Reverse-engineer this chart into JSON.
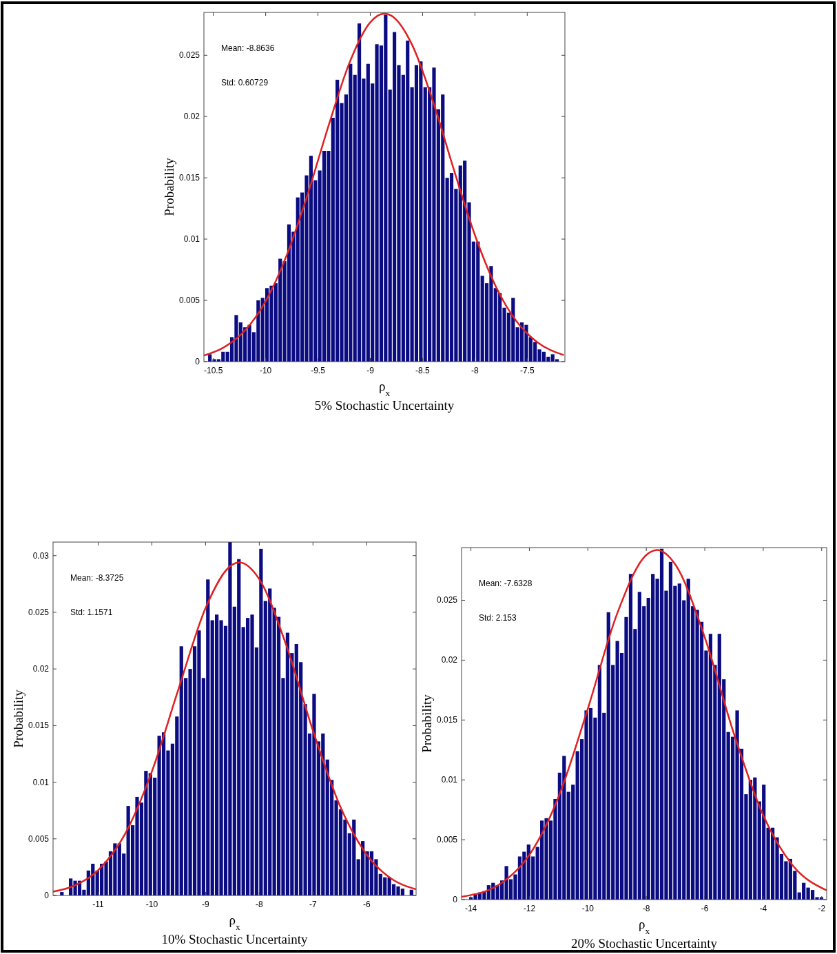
{
  "chart_data": [
    {
      "type": "histogram",
      "title": "5% Stochastic Uncertainty",
      "xlabel": "ρ$_{x}$",
      "ylabel": "Probability",
      "annotations": [
        "Mean: -8.8636",
        "Std: 0.60729"
      ],
      "xlim": [
        -10.59,
        -7.14
      ],
      "ylim": [
        0,
        0.0285
      ],
      "xticks": [
        -10.5,
        -10,
        -9.5,
        -9,
        -8.5,
        -8,
        -7.5
      ],
      "yticks": [
        0,
        0.005,
        0.01,
        0.015,
        0.02,
        0.025
      ],
      "series": [
        {
          "color": "#0b0b82",
          "bins": [
            -10.554,
            -10.512,
            -10.47,
            -10.428,
            -10.386,
            -10.344,
            -10.302,
            -10.26,
            -10.218,
            -10.176,
            -10.134,
            -10.092,
            -10.05,
            -10.008,
            -9.966,
            -9.924,
            -9.882,
            -9.84,
            -9.798,
            -9.756,
            -9.714,
            -9.672,
            -9.63,
            -9.588,
            -9.546,
            -9.504,
            -9.462,
            -9.42,
            -9.378,
            -9.336,
            -9.294,
            -9.252,
            -9.21,
            -9.168,
            -9.126,
            -9.084,
            -9.042,
            -9.0,
            -8.958,
            -8.916,
            -8.874,
            -8.832,
            -8.79,
            -8.748,
            -8.706,
            -8.664,
            -8.622,
            -8.58,
            -8.538,
            -8.496,
            -8.454,
            -8.412,
            -8.37,
            -8.328,
            -8.286,
            -8.244,
            -8.202,
            -8.16,
            -8.118,
            -8.076,
            -8.034,
            -7.992,
            -7.95,
            -7.908,
            -7.866,
            -7.824,
            -7.782,
            -7.74,
            -7.698,
            -7.656,
            -7.614,
            -7.572,
            -7.53,
            -7.488,
            -7.446,
            -7.404,
            -7.362,
            -7.32,
            -7.278,
            -7.236,
            -7.194
          ],
          "values": [
            0.0006,
            0.0002,
            0.0002,
            0.0008,
            0.0008,
            0.002,
            0.0038,
            0.0032,
            0.0028,
            0.003,
            0.0024,
            0.005,
            0.0052,
            0.006,
            0.0062,
            0.0064,
            0.0084,
            0.0082,
            0.0112,
            0.0106,
            0.0134,
            0.0138,
            0.0152,
            0.0168,
            0.0148,
            0.0156,
            0.0172,
            0.0172,
            0.0199,
            0.023,
            0.0211,
            0.0218,
            0.0243,
            0.0234,
            0.0276,
            0.0231,
            0.0243,
            0.0227,
            0.0259,
            0.0258,
            0.0283,
            0.0222,
            0.0269,
            0.0242,
            0.0234,
            0.0262,
            0.0224,
            0.0242,
            0.0245,
            0.0224,
            0.0224,
            0.024,
            0.0206,
            0.0218,
            0.015,
            0.0154,
            0.0141,
            0.016,
            0.0164,
            0.013,
            0.0098,
            0.0098,
            0.007,
            0.0064,
            0.0078,
            0.006,
            0.0056,
            0.0044,
            0.004,
            0.0052,
            0.0028,
            0.0032,
            0.003,
            0.002,
            0.0016,
            0.001,
            0.0008,
            0.0004,
            0.0006,
            0.0002
          ]
        },
        {
          "type": "line",
          "color": "#e02020",
          "x": [
            -10.59,
            -10.4,
            -10.2,
            -10.0,
            -9.8,
            -9.6,
            -9.4,
            -9.2,
            -9.0,
            -8.8636,
            -8.8,
            -8.6,
            -8.4,
            -8.2,
            -8.0,
            -7.8,
            -7.6,
            -7.4,
            -7.15
          ],
          "values": [
            0.0005,
            0.00116,
            0.00252,
            0.00493,
            0.00865,
            0.01361,
            0.01922,
            0.02436,
            0.02769,
            0.0284,
            0.02824,
            0.02585,
            0.02122,
            0.01563,
            0.01033,
            0.00613,
            0.00326,
            0.00156,
            0.00053
          ]
        }
      ]
    },
    {
      "type": "histogram",
      "title": "10% Stochastic Uncertainty",
      "xlabel": "ρ$_{x}$",
      "ylabel": "Probability",
      "annotations": [
        "Mean: -8.3725",
        "Std: 1.1571"
      ],
      "xlim": [
        -11.84,
        -5.08
      ],
      "ylim": [
        0,
        0.0312
      ],
      "xticks": [
        -11,
        -10,
        -9,
        -8,
        -7,
        -6
      ],
      "yticks": [
        0,
        0.005,
        0.01,
        0.015,
        0.02,
        0.025,
        0.03
      ],
      "series": [
        {
          "color": "#0b0b82",
          "bins": [
            -11.717,
            -11.6346,
            -11.5522,
            -11.4698,
            -11.3874,
            -11.305,
            -11.2226,
            -11.1402,
            -11.0578,
            -10.9754,
            -10.893,
            -10.8106,
            -10.7282,
            -10.6458,
            -10.5634,
            -10.481,
            -10.3986,
            -10.3162,
            -10.2338,
            -10.1514,
            -10.069,
            -9.9866,
            -9.9042,
            -9.8218,
            -9.7394,
            -9.657,
            -9.5746,
            -9.4922,
            -9.4098,
            -9.3274,
            -9.245,
            -9.1626,
            -9.0802,
            -8.9978,
            -8.9154,
            -8.833,
            -8.7506,
            -8.6682,
            -8.5858,
            -8.5034,
            -8.421,
            -8.3386,
            -8.2562,
            -8.1738,
            -8.0914,
            -8.009,
            -7.9266,
            -7.8442,
            -7.7618,
            -7.6794,
            -7.597,
            -7.5146,
            -7.4322,
            -7.3498,
            -7.2674,
            -7.185,
            -7.1026,
            -7.0202,
            -6.9378,
            -6.8554,
            -6.773,
            -6.6906,
            -6.6082,
            -6.5258,
            -6.4434,
            -6.361,
            -6.2786,
            -6.1962,
            -6.1138,
            -6.0314,
            -5.949,
            -5.8666,
            -5.7842,
            -5.7018,
            -5.6194,
            -5.537,
            -5.4546,
            -5.3722,
            -5.2898,
            -5.2074,
            -5.125
          ],
          "values": [
            0.0003,
            0,
            0.0015,
            0.0013,
            0.0013,
            0.0005,
            0.0022,
            0.0028,
            0.0022,
            0.0028,
            0.003,
            0.0039,
            0.0046,
            0.0046,
            0.0037,
            0.0079,
            0.0062,
            0.0087,
            0.0082,
            0.011,
            0.0108,
            0.0104,
            0.0141,
            0.0144,
            0.0128,
            0.0134,
            0.0158,
            0.022,
            0.0192,
            0.02,
            0.022,
            0.0234,
            0.0192,
            0.0279,
            0.0243,
            0.0248,
            0.0243,
            0.0238,
            0.0312,
            0.0255,
            0.0297,
            0.0237,
            0.0245,
            0.0248,
            0.0219,
            0.0306,
            0.026,
            0.0271,
            0.0254,
            0.0246,
            0.0192,
            0.0232,
            0.0214,
            0.0222,
            0.0206,
            0.0169,
            0.0143,
            0.0178,
            0.0136,
            0.0143,
            0.012,
            0.0102,
            0.0084,
            0.0076,
            0.0067,
            0.0055,
            0.0067,
            0.0032,
            0.0048,
            0.0039,
            0.0039,
            0.0032,
            0.0019,
            0.0016,
            0.0016,
            0.001,
            0.0008,
            0.0006,
            0,
            0.0005
          ]
        },
        {
          "type": "line",
          "color": "#e02020",
          "x": [
            -11.84,
            -11.5,
            -11.0,
            -10.5,
            -10.0,
            -9.5,
            -9.0,
            -8.5,
            -8.3725,
            -8.0,
            -7.5,
            -7.0,
            -6.5,
            -6.0,
            -5.5,
            -5.08
          ],
          "values": [
            0.00034,
            0.00076,
            0.00223,
            0.00542,
            0.01094,
            0.01829,
            0.02538,
            0.02922,
            0.0294,
            0.02792,
            0.02213,
            0.01455,
            0.00794,
            0.0036,
            0.00135,
            0.00054
          ]
        }
      ]
    },
    {
      "type": "histogram",
      "title": "20% Stochastic Uncertainty",
      "xlabel": "ρ$_{x}$",
      "ylabel": "Probability",
      "annotations": [
        "Mean: -7.6328",
        "Std: 2.153"
      ],
      "xlim": [
        -14.32,
        -1.83
      ],
      "ylim": [
        0,
        0.0294
      ],
      "xticks": [
        -14,
        -12,
        -10,
        -8,
        -6,
        -4,
        -2
      ],
      "yticks": [
        0,
        0.005,
        0.01,
        0.015,
        0.02,
        0.025
      ],
      "series": [
        {
          "color": "#0b0b82",
          "bins": [
            -14.076,
            -13.9242,
            -13.7724,
            -13.6206,
            -13.4688,
            -13.317,
            -13.1652,
            -13.0134,
            -12.8616,
            -12.7098,
            -12.558,
            -12.4062,
            -12.2544,
            -12.1026,
            -11.9508,
            -11.799,
            -11.6472,
            -11.4954,
            -11.3436,
            -11.1918,
            -11.04,
            -10.8882,
            -10.7364,
            -10.5846,
            -10.4328,
            -10.281,
            -10.1292,
            -9.9774,
            -9.8256,
            -9.6738,
            -9.522,
            -9.3702,
            -9.2184,
            -9.0666,
            -8.9148,
            -8.763,
            -8.6112,
            -8.4594,
            -8.3076,
            -8.1558,
            -8.004,
            -7.8522,
            -7.7004,
            -7.5486,
            -7.3968,
            -7.245,
            -7.0932,
            -6.9414,
            -6.7896,
            -6.6378,
            -6.486,
            -6.3342,
            -6.1824,
            -6.0306,
            -5.8788,
            -5.727,
            -5.5752,
            -5.4234,
            -5.2716,
            -5.1198,
            -4.968,
            -4.8162,
            -4.6644,
            -4.5126,
            -4.3608,
            -4.209,
            -4.0572,
            -3.9054,
            -3.7536,
            -3.6018,
            -3.45,
            -3.2982,
            -3.1464,
            -2.9946,
            -2.8428,
            -2.691,
            -2.5392,
            -2.3874,
            -2.2356,
            -2.0838,
            -1.932
          ],
          "values": [
            0.0002,
            0.0005,
            0.0006,
            0.0007,
            0.0012,
            0.0014,
            0.0012,
            0.0016,
            0.0028,
            0.0017,
            0.0021,
            0.0036,
            0.004,
            0.0046,
            0.0036,
            0.0044,
            0.0066,
            0.0068,
            0.0066,
            0.0084,
            0.0106,
            0.012,
            0.009,
            0.0096,
            0.0124,
            0.0134,
            0.0158,
            0.016,
            0.0152,
            0.0196,
            0.0156,
            0.024,
            0.0196,
            0.0216,
            0.0206,
            0.0236,
            0.0272,
            0.0226,
            0.0257,
            0.0245,
            0.0252,
            0.0272,
            0.0268,
            0.0293,
            0.0258,
            0.0282,
            0.0262,
            0.0264,
            0.025,
            0.0268,
            0.0245,
            0.0242,
            0.0232,
            0.0208,
            0.0222,
            0.0196,
            0.0222,
            0.0184,
            0.014,
            0.0136,
            0.0158,
            0.0126,
            0.0088,
            0.01,
            0.0102,
            0.0082,
            0.0096,
            0.006,
            0.006,
            0.0052,
            0.0038,
            0.0032,
            0.0034,
            0.0024,
            0.0006,
            0.0014,
            0.001,
            0.0008,
            0.0002,
            0.0002
          ]
        },
        {
          "type": "line",
          "color": "#e02020",
          "x": [
            -14.32,
            -13,
            -12,
            -11,
            -10,
            -9,
            -8,
            -7.6328,
            -7,
            -6,
            -5,
            -4,
            -3,
            -1.83
          ],
          "values": [
            0.00023,
            0.00131,
            0.00373,
            0.00859,
            0.01595,
            0.02387,
            0.02878,
            0.0292,
            0.02796,
            0.0219,
            0.01383,
            0.00703,
            0.00288,
            0.00077
          ]
        }
      ]
    }
  ]
}
